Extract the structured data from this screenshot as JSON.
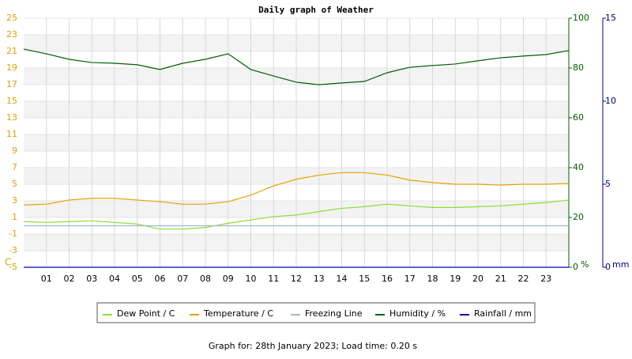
{
  "chart_data": {
    "type": "line",
    "title": "Daily graph of Weather",
    "y_label": "C",
    "y2_label": "%",
    "y3_label": "mm",
    "x": [
      0,
      1,
      2,
      3,
      4,
      5,
      6,
      7,
      8,
      9,
      10,
      11,
      12,
      13,
      14,
      15,
      16,
      17,
      18,
      19,
      20,
      21,
      22,
      23,
      24
    ],
    "xlim": [
      0,
      24
    ],
    "xticks": [
      {
        "value": 1,
        "label": "01"
      },
      {
        "value": 2,
        "label": "02"
      },
      {
        "value": 3,
        "label": "03"
      },
      {
        "value": 4,
        "label": "04"
      },
      {
        "value": 5,
        "label": "05"
      },
      {
        "value": 6,
        "label": "06"
      },
      {
        "value": 7,
        "label": "07"
      },
      {
        "value": 8,
        "label": "08"
      },
      {
        "value": 9,
        "label": "09"
      },
      {
        "value": 10,
        "label": "10"
      },
      {
        "value": 11,
        "label": "11"
      },
      {
        "value": 12,
        "label": "12"
      },
      {
        "value": 13,
        "label": "13"
      },
      {
        "value": 14,
        "label": "14"
      },
      {
        "value": 15,
        "label": "15"
      },
      {
        "value": 16,
        "label": "16"
      },
      {
        "value": 17,
        "label": "17"
      },
      {
        "value": 18,
        "label": "18"
      },
      {
        "value": 19,
        "label": "19"
      },
      {
        "value": 20,
        "label": "20"
      },
      {
        "value": 21,
        "label": "21"
      },
      {
        "value": 22,
        "label": "22"
      },
      {
        "value": 23,
        "label": "23"
      }
    ],
    "ylim": [
      -5,
      25
    ],
    "yticks": [
      -5,
      -3,
      -1,
      1,
      3,
      5,
      7,
      9,
      11,
      13,
      15,
      17,
      19,
      21,
      23,
      25
    ],
    "y2lim": [
      0,
      100
    ],
    "y2ticks": [
      0,
      20,
      40,
      60,
      80,
      100
    ],
    "y3lim": [
      0,
      15
    ],
    "y3ticks": [
      0,
      5,
      10,
      15
    ],
    "grid": true,
    "series": [
      {
        "name": "Dew Point / C",
        "color": "#88e030",
        "values": [
          0.5,
          0.4,
          0.5,
          0.6,
          0.4,
          0.2,
          -0.4,
          -0.4,
          -0.2,
          0.3,
          0.7,
          1.1,
          1.3,
          1.7,
          2.1,
          2.3,
          2.6,
          2.4,
          2.2,
          2.2,
          2.3,
          2.4,
          2.6,
          2.8,
          3.1
        ]
      },
      {
        "name": "Temperature / C",
        "color": "#e8a000",
        "values": [
          2.5,
          2.6,
          3.1,
          3.3,
          3.3,
          3.1,
          2.9,
          2.6,
          2.6,
          2.9,
          3.7,
          4.8,
          5.6,
          6.1,
          6.4,
          6.4,
          6.1,
          5.5,
          5.2,
          5.0,
          5.0,
          4.9,
          5.0,
          5.0,
          5.1
        ]
      },
      {
        "name": "Freezing Line",
        "color": "#a0b8d0",
        "values": [
          0,
          0,
          0,
          0,
          0,
          0,
          0,
          0,
          0,
          0,
          0,
          0,
          0,
          0,
          0,
          0,
          0,
          0,
          0,
          0,
          0,
          0,
          0,
          0,
          0
        ]
      },
      {
        "name": "Humidity / %",
        "color": "#006000",
        "axis": "y2",
        "values": [
          87.6,
          85.7,
          83.5,
          82.2,
          81.9,
          81.3,
          79.4,
          81.9,
          83.5,
          85.7,
          79.4,
          76.8,
          74.3,
          73.3,
          74,
          74.6,
          78.1,
          80.3,
          81,
          81.6,
          82.9,
          84.1,
          84.8,
          85.4,
          87
        ]
      },
      {
        "name": "Rainfall / mm",
        "color": "#0000c0",
        "axis": "y3",
        "values": [
          0,
          0,
          0,
          0,
          0,
          0,
          0,
          0,
          0,
          0,
          0,
          0,
          0,
          0,
          0,
          0,
          0,
          0,
          0,
          0,
          0,
          0,
          0,
          0,
          0
        ]
      }
    ],
    "footer": "Graph for: 28th January 2023; Load time: 0.20 s"
  }
}
